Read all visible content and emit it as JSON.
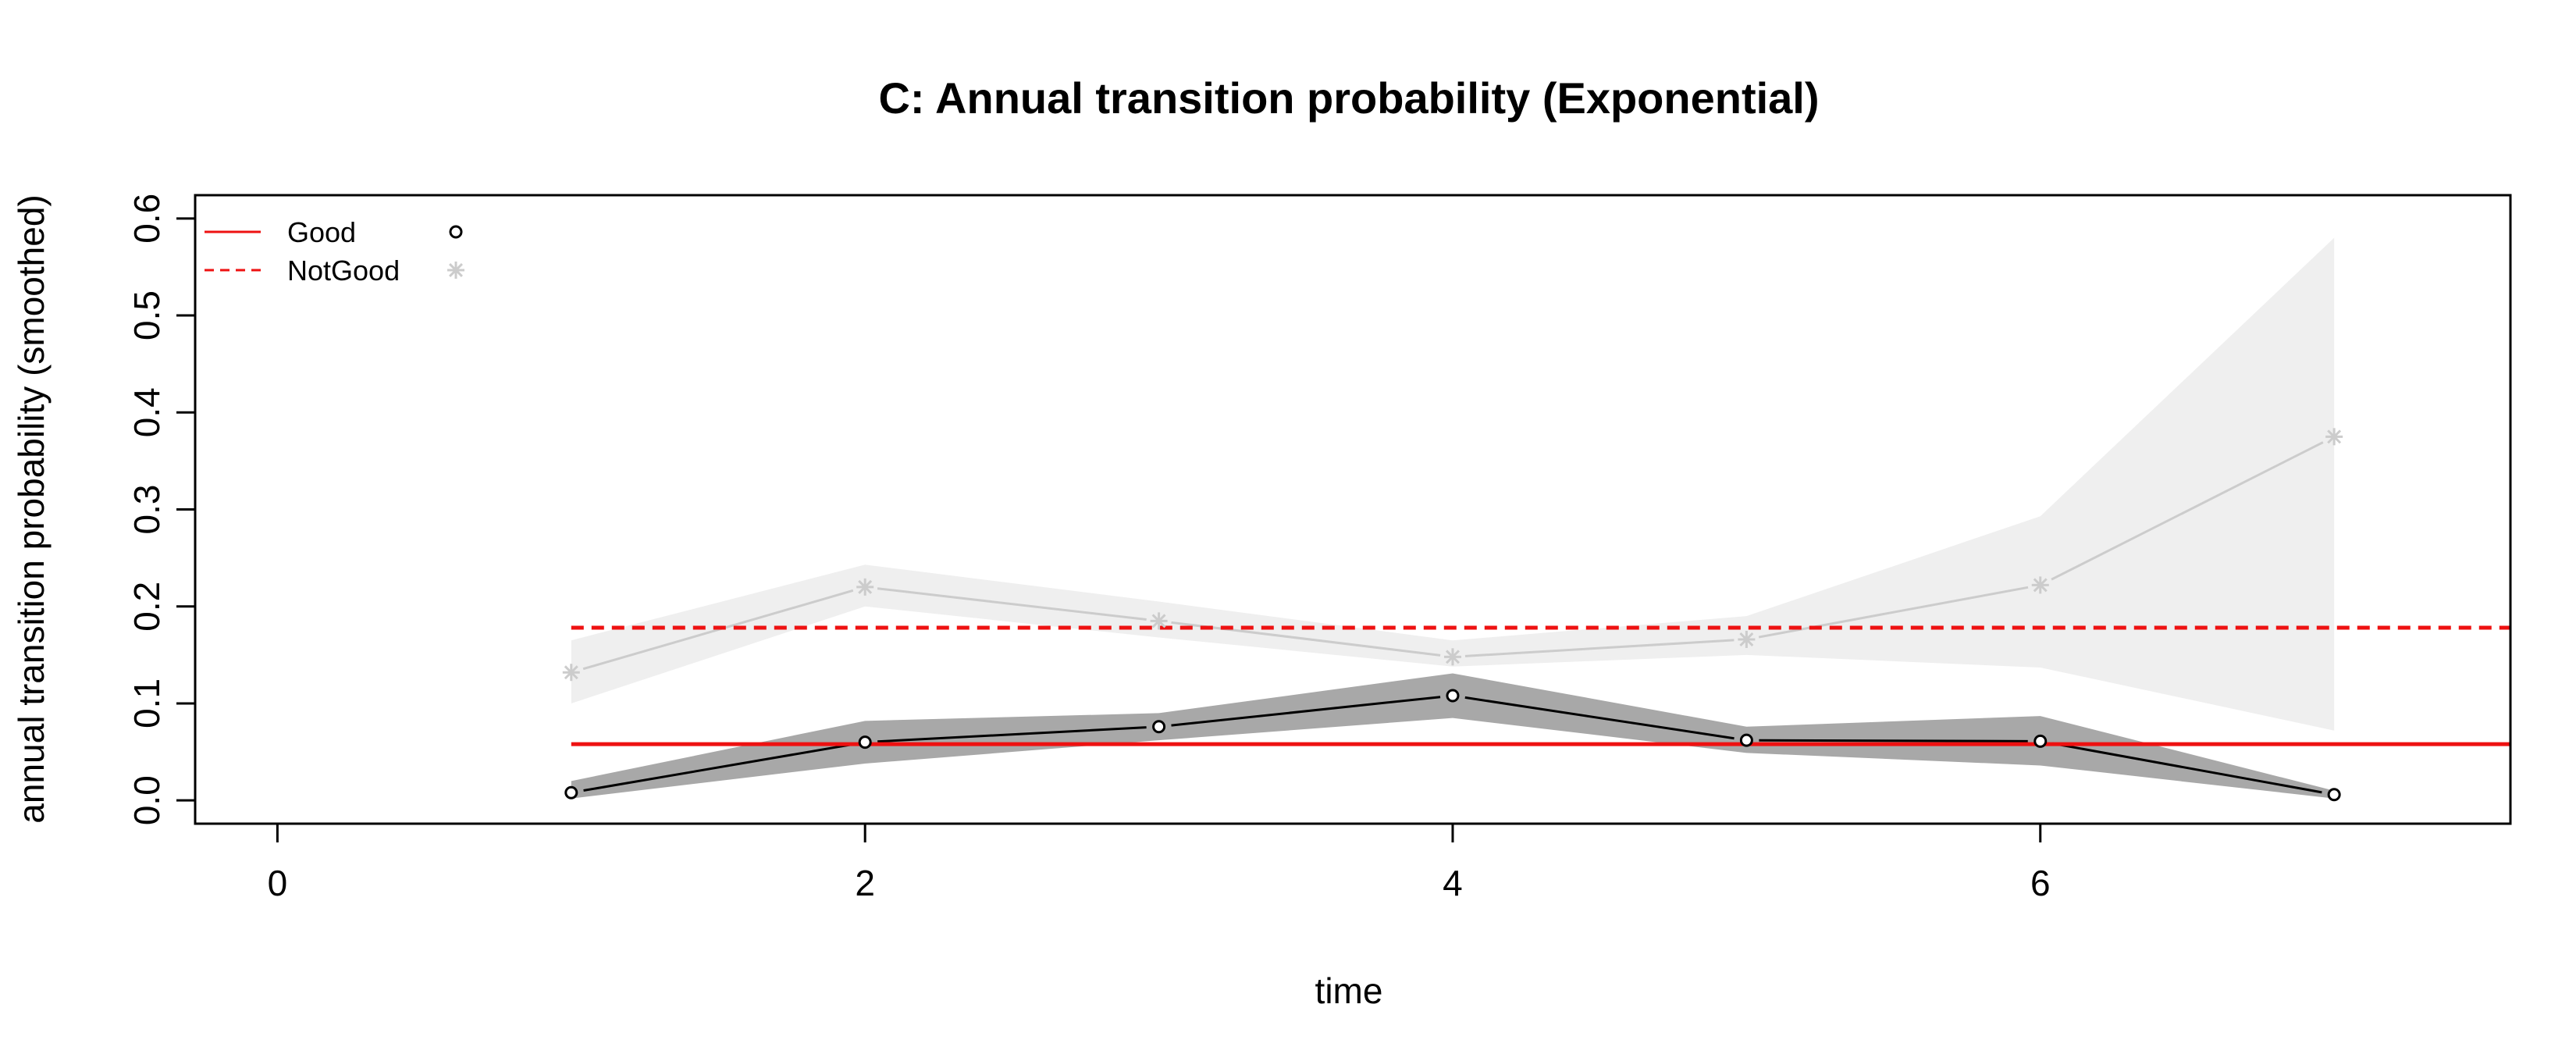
{
  "chart_data": {
    "type": "line",
    "title": "C: Annual transition probability (Exponential)",
    "xlabel": "time",
    "ylabel": "annual transition probability (smoothed)",
    "xlim": [
      -0.28,
      7.6
    ],
    "ylim": [
      -0.024,
      0.624
    ],
    "x_ticks": [
      0,
      2,
      4,
      6
    ],
    "y_ticks": [
      0.0,
      0.1,
      0.2,
      0.3,
      0.4,
      0.5,
      0.6
    ],
    "x_tick_labels": [
      "0",
      "2",
      "4",
      "6"
    ],
    "y_tick_labels": [
      "0.0",
      "0.1",
      "0.2",
      "0.3",
      "0.4",
      "0.5",
      "0.6"
    ],
    "legend_position": "top-left",
    "grid": false,
    "series": [
      {
        "name": "Good",
        "marker": "circle",
        "line_color": "#000000",
        "band_color": "#a8a8a8",
        "x": [
          1,
          2,
          3,
          4,
          5,
          6,
          7
        ],
        "y": [
          0.008,
          0.06,
          0.076,
          0.108,
          0.062,
          0.061,
          0.006
        ],
        "lower": [
          0.002,
          0.038,
          0.062,
          0.085,
          0.049,
          0.036,
          0.002
        ],
        "upper": [
          0.02,
          0.082,
          0.09,
          0.131,
          0.076,
          0.087,
          0.01
        ],
        "fitted_value": 0.058,
        "fitted_style": "solid",
        "fitted_color": "#ee1111"
      },
      {
        "name": "NotGood",
        "marker": "asterisk",
        "line_color": "#cccccc",
        "band_color": "#efefef",
        "x": [
          1,
          2,
          3,
          4,
          5,
          6,
          7
        ],
        "y": [
          0.132,
          0.22,
          0.185,
          0.148,
          0.166,
          0.222,
          0.375
        ],
        "lower": [
          0.1,
          0.2,
          0.168,
          0.138,
          0.15,
          0.137,
          0.072
        ],
        "upper": [
          0.165,
          0.243,
          0.205,
          0.165,
          0.19,
          0.293,
          0.58
        ],
        "fitted_value": 0.178,
        "fitted_style": "dashed",
        "fitted_color": "#ee1111"
      }
    ]
  },
  "legend": {
    "items": [
      {
        "label": "Good",
        "line_style": "solid",
        "color": "#ee1111",
        "marker": "circle",
        "marker_color": "#000000"
      },
      {
        "label": "NotGood",
        "line_style": "dashed",
        "color": "#ee1111",
        "marker": "asterisk",
        "marker_color": "#cccccc"
      }
    ]
  }
}
